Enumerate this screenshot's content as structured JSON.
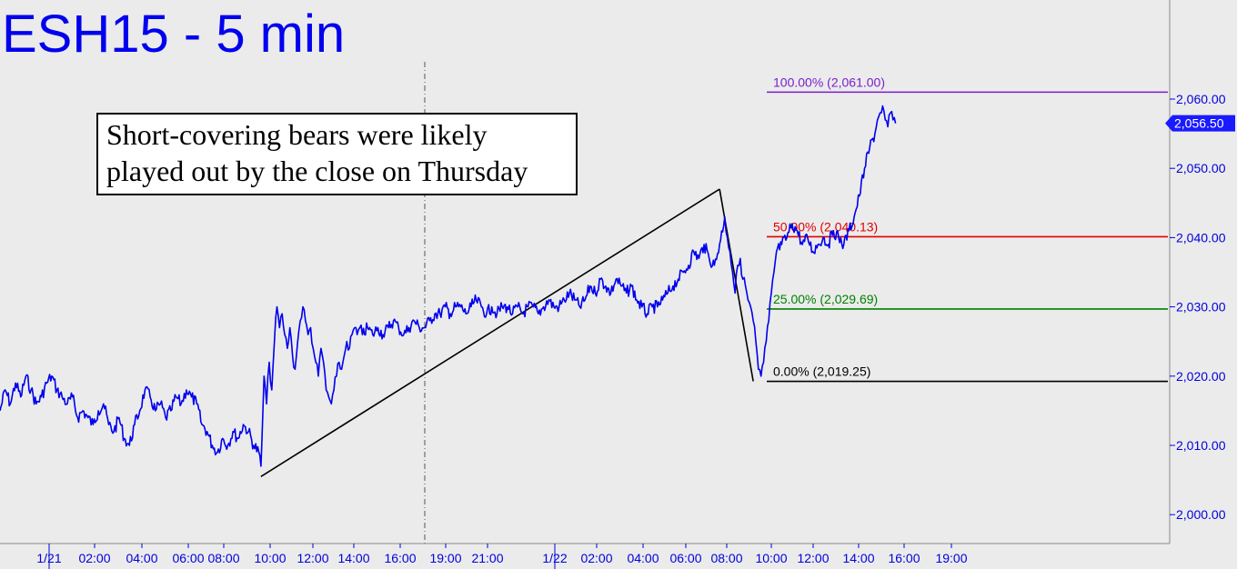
{
  "chart_data": {
    "type": "line",
    "title": "ESH15 - 5 min",
    "annotation": [
      "Short-covering bears were likely",
      "played out by the close on Thursday"
    ],
    "y_ticks": [
      {
        "value": 2060,
        "label": "2,060.00"
      },
      {
        "value": 2050,
        "label": "2,050.00"
      },
      {
        "value": 2040,
        "label": "2,040.00"
      },
      {
        "value": 2030,
        "label": "2,030.00"
      },
      {
        "value": 2020,
        "label": "2,020.00"
      },
      {
        "value": 2010,
        "label": "2,010.00"
      },
      {
        "value": 2000,
        "label": "2,000.00"
      }
    ],
    "x_ticks": [
      "1/21",
      "02:00",
      "04:00",
      "06:00",
      "08:00",
      "10:00",
      "12:00",
      "14:00",
      "16:00",
      "19:00",
      "21:00",
      "1/22",
      "02:00",
      "04:00",
      "06:00",
      "08:00",
      "10:00",
      "12:00",
      "14:00",
      "16:00",
      "19:00"
    ],
    "last_value": {
      "value": 2056.5,
      "label": "2,056.50"
    },
    "fib_levels": [
      {
        "pct": "100.00%",
        "value": 2061.0,
        "label": "100.00% (2,061.00)",
        "color": "#7a1fcc"
      },
      {
        "pct": "50.00%",
        "value": 2040.13,
        "label": "50.00% (2,040.13)",
        "color": "#e00000"
      },
      {
        "pct": "25.00%",
        "value": 2029.69,
        "label": "25.00% (2,029.69)",
        "color": "#008000"
      },
      {
        "pct": "0.00%",
        "value": 2019.25,
        "label": "0.00% (2,019.25)",
        "color": "#000000"
      }
    ],
    "price_series": [
      [
        0,
        2015
      ],
      [
        2,
        2018
      ],
      [
        4,
        2016
      ],
      [
        6,
        2019
      ],
      [
        8,
        2017
      ],
      [
        10,
        2020
      ],
      [
        12,
        2018
      ],
      [
        14,
        2016
      ],
      [
        16,
        2017
      ],
      [
        18,
        2019
      ],
      [
        20,
        2020
      ],
      [
        22,
        2018
      ],
      [
        24,
        2017
      ],
      [
        26,
        2016
      ],
      [
        28,
        2017
      ],
      [
        30,
        2014
      ],
      [
        32,
        2015
      ],
      [
        34,
        2014
      ],
      [
        36,
        2013
      ],
      [
        38,
        2015
      ],
      [
        40,
        2016
      ],
      [
        42,
        2013
      ],
      [
        44,
        2012
      ],
      [
        46,
        2014
      ],
      [
        48,
        2011
      ],
      [
        50,
        2010
      ],
      [
        52,
        2013
      ],
      [
        54,
        2015
      ],
      [
        56,
        2018
      ],
      [
        58,
        2017
      ],
      [
        60,
        2015
      ],
      [
        62,
        2016
      ],
      [
        64,
        2014
      ],
      [
        66,
        2015
      ],
      [
        68,
        2017
      ],
      [
        70,
        2016
      ],
      [
        72,
        2018
      ],
      [
        74,
        2017
      ],
      [
        76,
        2016
      ],
      [
        78,
        2013
      ],
      [
        80,
        2012
      ],
      [
        82,
        2010
      ],
      [
        84,
        2009
      ],
      [
        86,
        2011
      ],
      [
        88,
        2010
      ],
      [
        90,
        2012
      ],
      [
        92,
        2011
      ],
      [
        94,
        2013
      ],
      [
        96,
        2012
      ],
      [
        98,
        2010
      ],
      [
        100,
        2009
      ],
      [
        100.8,
        2007
      ],
      [
        101.5,
        2014
      ],
      [
        102,
        2020
      ],
      [
        103,
        2016
      ],
      [
        104,
        2022
      ],
      [
        105,
        2018
      ],
      [
        106,
        2025
      ],
      [
        107,
        2030
      ],
      [
        108,
        2027
      ],
      [
        109,
        2029
      ],
      [
        110,
        2026
      ],
      [
        111,
        2024
      ],
      [
        112,
        2027
      ],
      [
        113,
        2023
      ],
      [
        114,
        2021
      ],
      [
        115,
        2025
      ],
      [
        116,
        2028
      ],
      [
        117,
        2030
      ],
      [
        118,
        2028
      ],
      [
        119,
        2026
      ],
      [
        120,
        2027
      ],
      [
        121,
        2024
      ],
      [
        122,
        2022
      ],
      [
        123,
        2020
      ],
      [
        124,
        2024
      ],
      [
        125,
        2022
      ],
      [
        126,
        2018
      ],
      [
        127,
        2017
      ],
      [
        128,
        2016
      ],
      [
        129,
        2018
      ],
      [
        130,
        2020
      ],
      [
        131,
        2022
      ],
      [
        132,
        2021
      ],
      [
        133,
        2023
      ],
      [
        134,
        2025
      ],
      [
        135,
        2024
      ],
      [
        136,
        2026
      ],
      [
        137,
        2027
      ],
      [
        138,
        2026
      ],
      [
        139,
        2027
      ],
      [
        140,
        2026
      ],
      [
        142,
        2027
      ],
      [
        144,
        2026
      ],
      [
        146,
        2027
      ],
      [
        148,
        2026
      ],
      [
        150,
        2027
      ],
      [
        152,
        2028
      ],
      [
        154,
        2027
      ],
      [
        156,
        2026
      ],
      [
        158,
        2027
      ],
      [
        160,
        2028
      ],
      [
        162,
        2027
      ],
      [
        164,
        2027
      ],
      [
        166,
        2028
      ],
      [
        168,
        2029
      ],
      [
        170,
        2029
      ],
      [
        172,
        2030
      ],
      [
        174,
        2029
      ],
      [
        176,
        2030
      ],
      [
        178,
        2030
      ],
      [
        180,
        2029
      ],
      [
        182,
        2030
      ],
      [
        184,
        2031
      ],
      [
        186,
        2030
      ],
      [
        188,
        2029
      ],
      [
        190,
        2030
      ],
      [
        192,
        2029
      ],
      [
        194,
        2030
      ],
      [
        196,
        2030
      ],
      [
        198,
        2029
      ],
      [
        200,
        2030
      ],
      [
        202,
        2029
      ],
      [
        204,
        2030
      ],
      [
        206,
        2030
      ],
      [
        208,
        2029
      ],
      [
        210,
        2030
      ],
      [
        212,
        2031
      ],
      [
        214,
        2030
      ],
      [
        216,
        2030
      ],
      [
        218,
        2031
      ],
      [
        220,
        2032
      ],
      [
        222,
        2031
      ],
      [
        224,
        2030
      ],
      [
        226,
        2031
      ],
      [
        228,
        2033
      ],
      [
        230,
        2032
      ],
      [
        232,
        2034
      ],
      [
        234,
        2033
      ],
      [
        236,
        2032
      ],
      [
        238,
        2034
      ],
      [
        240,
        2033
      ],
      [
        242,
        2032
      ],
      [
        244,
        2033
      ],
      [
        246,
        2031
      ],
      [
        248,
        2030
      ],
      [
        250,
        2029
      ],
      [
        252,
        2030
      ],
      [
        254,
        2030
      ],
      [
        256,
        2031
      ],
      [
        258,
        2032
      ],
      [
        260,
        2033
      ],
      [
        262,
        2034
      ],
      [
        264,
        2035
      ],
      [
        266,
        2036
      ],
      [
        268,
        2038
      ],
      [
        270,
        2037
      ],
      [
        272,
        2039
      ],
      [
        274,
        2037
      ],
      [
        276,
        2036
      ],
      [
        278,
        2039
      ],
      [
        280,
        2043
      ],
      [
        281,
        2040
      ],
      [
        282,
        2038
      ],
      [
        283,
        2035
      ],
      [
        284,
        2032
      ],
      [
        285,
        2036
      ],
      [
        286,
        2037
      ],
      [
        287,
        2034
      ],
      [
        288,
        2033
      ],
      [
        289,
        2031
      ],
      [
        290,
        2030
      ],
      [
        291,
        2028
      ],
      [
        292,
        2025
      ],
      [
        293,
        2021
      ],
      [
        294,
        2020
      ],
      [
        295,
        2022
      ],
      [
        296,
        2025
      ],
      [
        297,
        2028
      ],
      [
        298,
        2032
      ],
      [
        299,
        2035
      ],
      [
        300,
        2038
      ],
      [
        302,
        2039
      ],
      [
        304,
        2040
      ],
      [
        306,
        2042
      ],
      [
        308,
        2041
      ],
      [
        310,
        2039
      ],
      [
        312,
        2040
      ],
      [
        314,
        2038
      ],
      [
        316,
        2039
      ],
      [
        318,
        2040
      ],
      [
        320,
        2039
      ],
      [
        322,
        2041
      ],
      [
        324,
        2040
      ],
      [
        326,
        2039
      ],
      [
        328,
        2041
      ],
      [
        330,
        2043
      ],
      [
        332,
        2046
      ],
      [
        334,
        2050
      ],
      [
        336,
        2053
      ],
      [
        338,
        2055
      ],
      [
        339,
        2057
      ],
      [
        340,
        2058
      ],
      [
        341,
        2059
      ],
      [
        342,
        2057
      ],
      [
        343,
        2056
      ],
      [
        344,
        2058
      ],
      [
        345,
        2057
      ],
      [
        346,
        2056.5
      ]
    ],
    "swing_lines": [
      {
        "from": [
          100.8,
          2005.5
        ],
        "to": [
          278,
          2047
        ]
      },
      {
        "from": [
          278,
          2047
        ],
        "to": [
          291,
          2019.25
        ]
      }
    ],
    "x_range": [
      0,
      420
    ],
    "ylim": [
      1995,
      2074
    ]
  }
}
